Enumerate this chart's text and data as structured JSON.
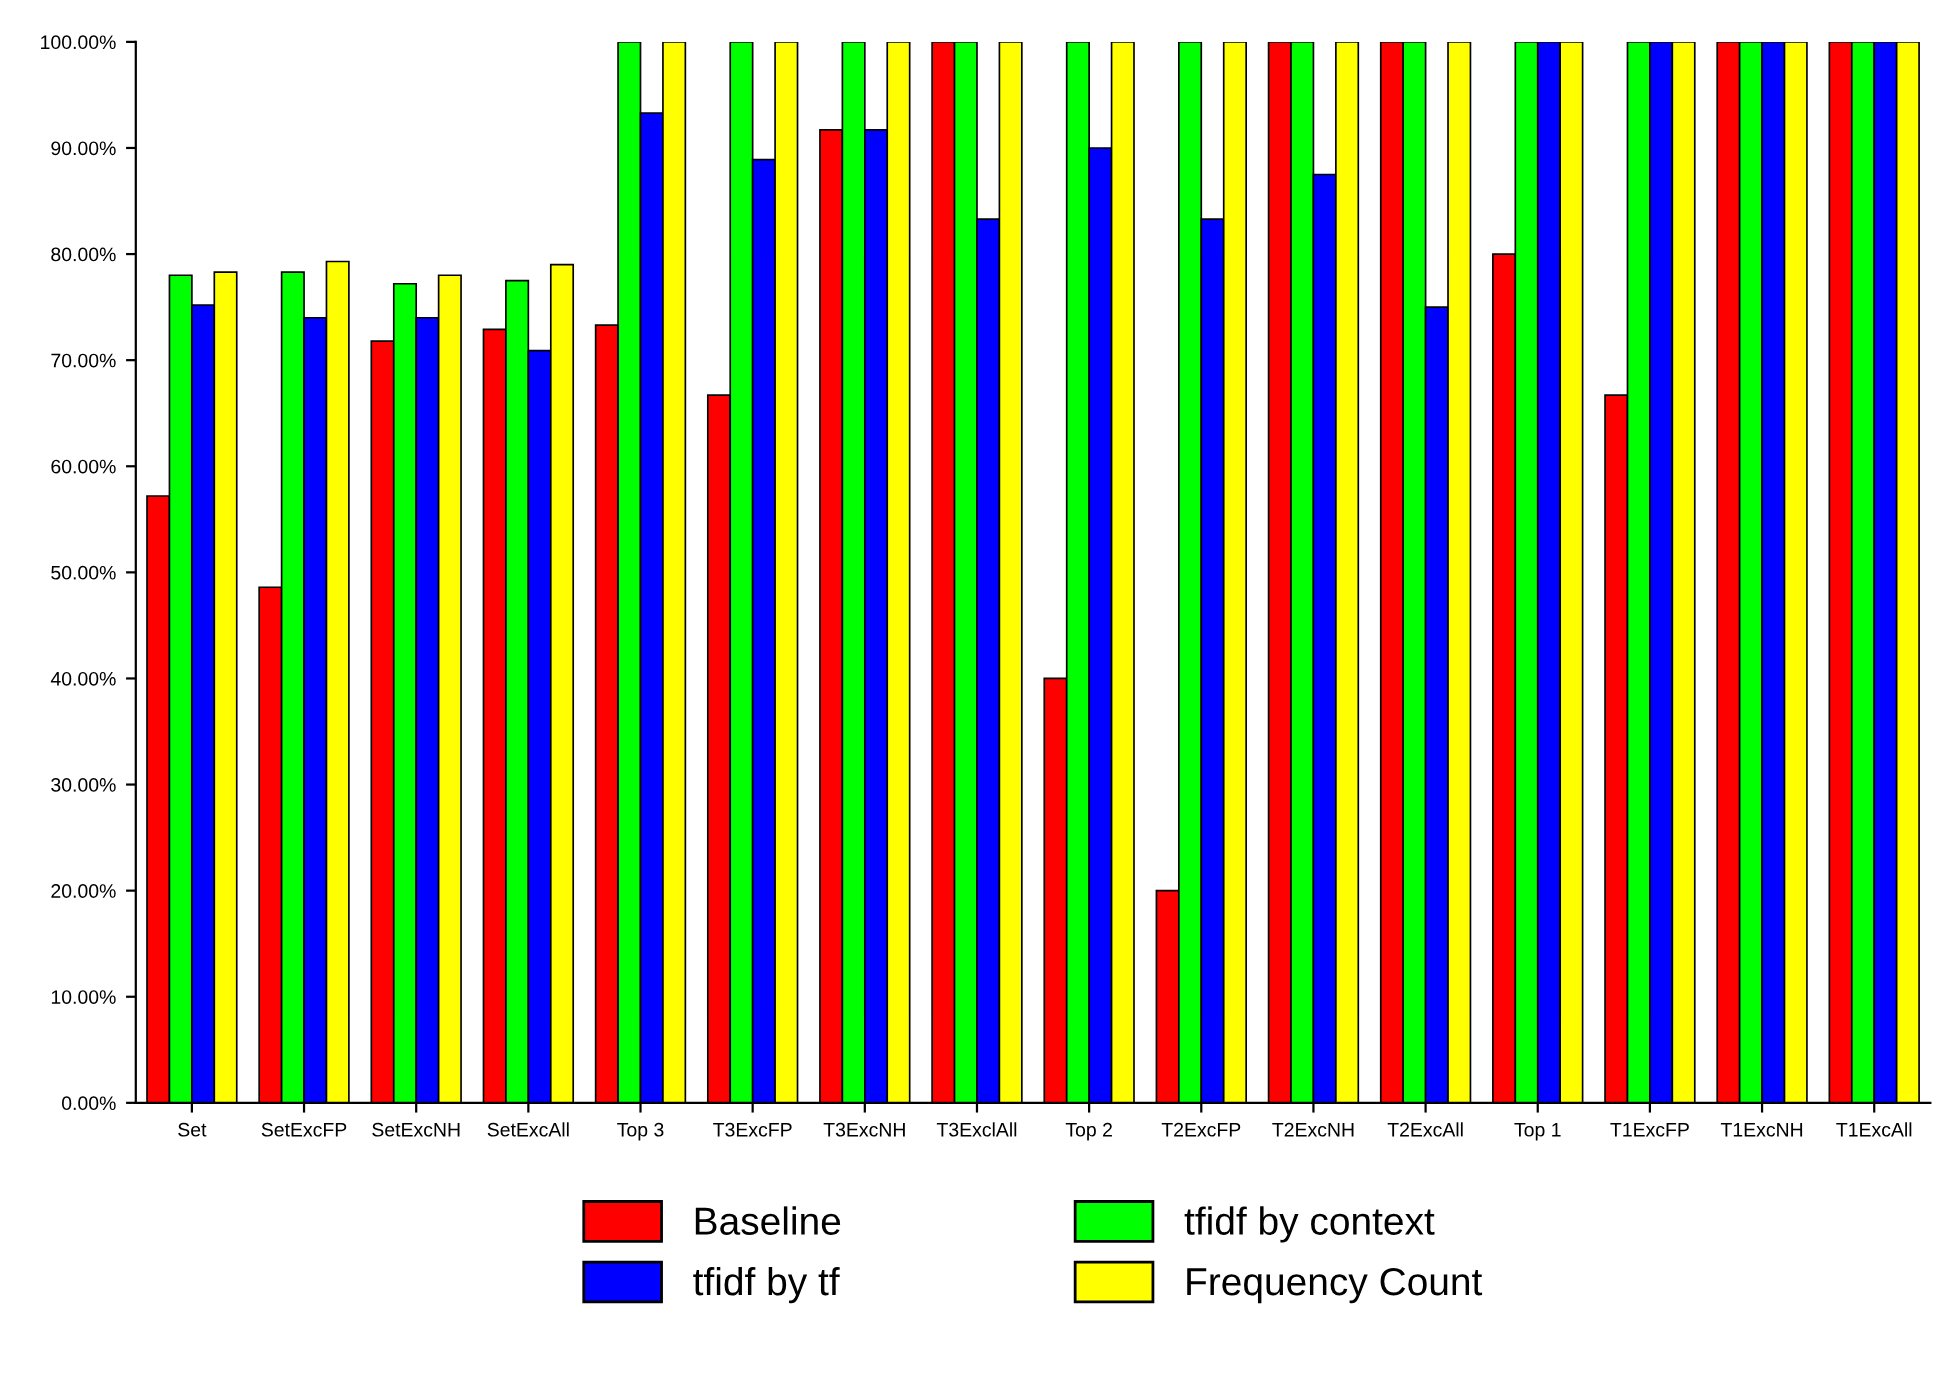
{
  "chart_data": {
    "type": "bar",
    "categories": [
      "Set",
      "SetExcFP",
      "SetExcNH",
      "SetExcAll",
      "Top 3",
      "T3ExcFP",
      "T3ExcNH",
      "T3ExclAll",
      "Top 2",
      "T2ExcFP",
      "T2ExcNH",
      "T2ExcAll",
      "Top 1",
      "T1ExcFP",
      "T1ExcNH",
      "T1ExcAll"
    ],
    "series": [
      {
        "name": "Baseline",
        "color": "#ff0000",
        "values": [
          57.2,
          48.6,
          71.8,
          72.9,
          73.3,
          66.7,
          91.7,
          100,
          40,
          20,
          100,
          100,
          80,
          66.7,
          100,
          100
        ]
      },
      {
        "name": "tfidf by context",
        "color": "#00ff00",
        "values": [
          78,
          78.3,
          77.2,
          77.5,
          100,
          100,
          100,
          100,
          100,
          100,
          100,
          100,
          100,
          100,
          100,
          100
        ]
      },
      {
        "name": "tfidf by tf",
        "color": "#0000ff",
        "values": [
          75.2,
          74,
          74,
          70.9,
          93.3,
          88.9,
          91.7,
          83.3,
          90,
          83.3,
          87.5,
          75,
          100,
          100,
          100,
          100
        ]
      },
      {
        "name": "Frequency Count",
        "color": "#ffff00",
        "values": [
          78.3,
          79.3,
          78,
          79,
          100,
          100,
          100,
          100,
          100,
          100,
          100,
          100,
          100,
          100,
          100,
          100
        ]
      }
    ],
    "ylim": [
      0,
      100
    ],
    "yticks": [
      {
        "value": 0,
        "label": "0.00%"
      },
      {
        "value": 10,
        "label": "10.00%"
      },
      {
        "value": 20,
        "label": "20.00%"
      },
      {
        "value": 30,
        "label": "30.00%"
      },
      {
        "value": 40,
        "label": "40.00%"
      },
      {
        "value": 50,
        "label": "50.00%"
      },
      {
        "value": 60,
        "label": "60.00%"
      },
      {
        "value": 70,
        "label": "70.00%"
      },
      {
        "value": 80,
        "label": "80.00%"
      },
      {
        "value": 90,
        "label": "90.00%"
      },
      {
        "value": 100,
        "label": "100.00%"
      }
    ],
    "grid": false,
    "legend": "bottom"
  }
}
